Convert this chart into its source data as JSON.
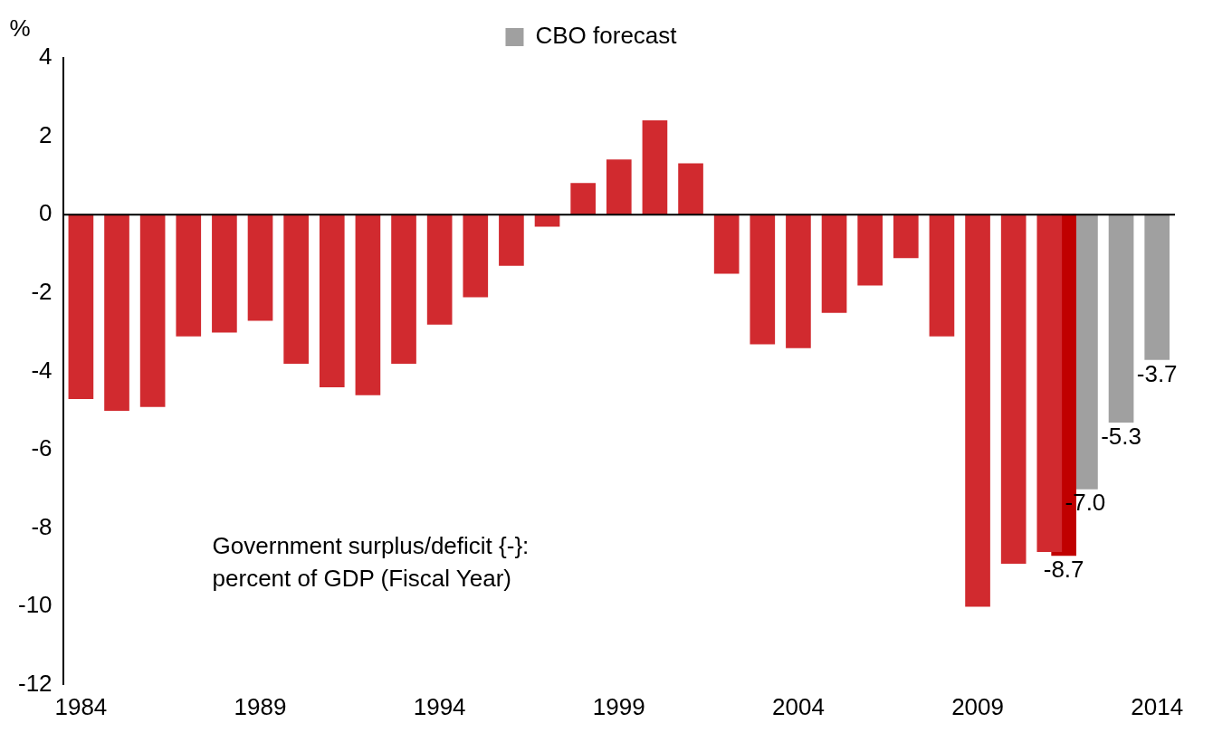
{
  "chart_data": {
    "type": "bar",
    "ylabel": "%",
    "annotations": [
      "Government surplus/deficit {-}:\npercent of GDP (Fiscal Year)"
    ],
    "x": [
      1984,
      1985,
      1986,
      1987,
      1988,
      1989,
      1990,
      1991,
      1992,
      1993,
      1994,
      1995,
      1996,
      1997,
      1998,
      1999,
      2000,
      2001,
      2002,
      2003,
      2004,
      2005,
      2006,
      2007,
      2008,
      2009,
      2010,
      2011
    ],
    "series": [
      {
        "color": "#d12a2f",
        "values": [
          -4.7,
          -5.0,
          -4.9,
          -3.1,
          -3.0,
          -2.7,
          -3.8,
          -4.4,
          -4.6,
          -3.8,
          -2.8,
          -2.1,
          -1.3,
          -0.3,
          0.8,
          1.4,
          2.4,
          1.3,
          -1.5,
          -3.3,
          -3.4,
          -2.5,
          -1.8,
          -1.1,
          -3.1,
          -10.0,
          -8.9,
          -8.6
        ]
      },
      {
        "color": "#c00000",
        "x": [
          2011.4
        ],
        "values": [
          -8.7
        ],
        "value_labels": [
          "-8.7"
        ]
      },
      {
        "name": "CBO forecast",
        "color": "#a0a0a0",
        "x": [
          2012,
          2013,
          2014
        ],
        "values": [
          -7.0,
          -5.3,
          -3.7
        ],
        "value_labels": [
          "-7.0",
          "-5.3",
          "-3.7"
        ]
      }
    ],
    "xlim": [
      1983.5,
      2014.5
    ],
    "xticks": [
      1984,
      1989,
      1994,
      1999,
      2004,
      2009,
      2014
    ],
    "ylim": [
      -12,
      4
    ],
    "yticks": [
      -12,
      -10,
      -8,
      -6,
      -4,
      -2,
      0,
      2,
      4
    ],
    "ref_lines": [
      {
        "axis": "y",
        "value": 0,
        "color": "#000000"
      }
    ],
    "grid": false,
    "legend": "top"
  }
}
